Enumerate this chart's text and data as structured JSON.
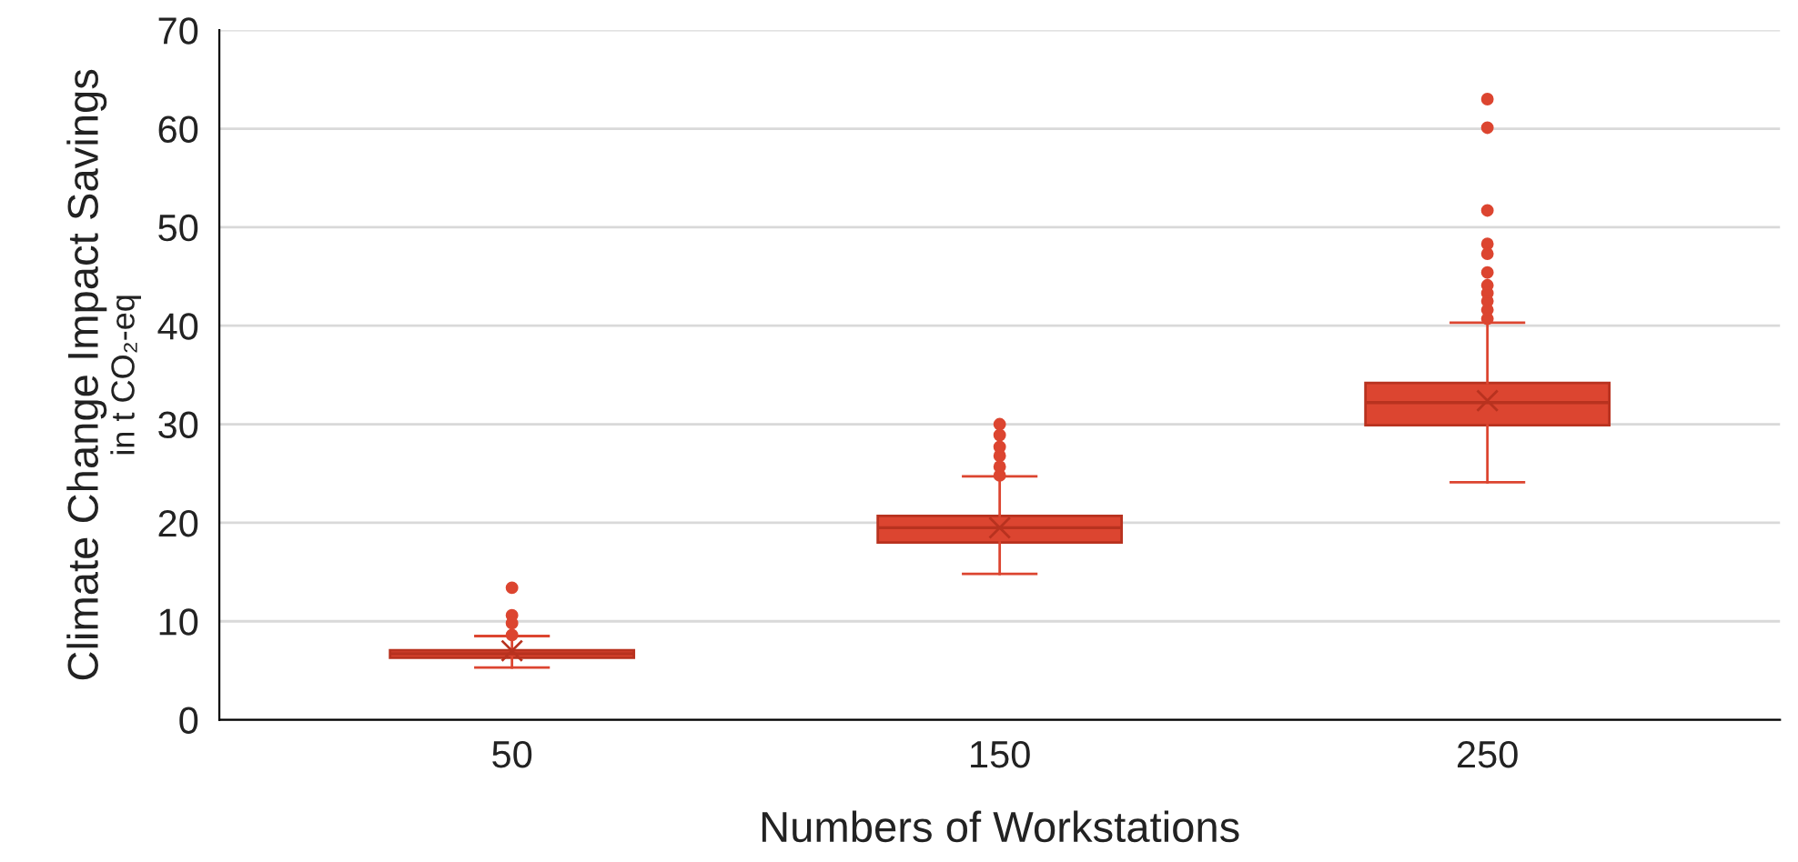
{
  "chart_data": {
    "type": "box",
    "xlabel": "Numbers of Workstations",
    "ylabel": "Climate Change Impact Savings\nin t CO₂-eq",
    "categories": [
      "50",
      "150",
      "250"
    ],
    "color": "#dc4530",
    "ylim": [
      0,
      70
    ],
    "yticks": [
      0,
      10,
      20,
      30,
      40,
      50,
      60,
      70
    ],
    "grid": "y",
    "boxes": [
      {
        "low": 5.3,
        "q1": 6.3,
        "median": 6.7,
        "q3": 7.05,
        "high": 8.5,
        "mean": 7.0,
        "outliers": [
          13.4,
          10.6,
          9.8,
          8.6
        ]
      },
      {
        "low": 14.8,
        "q1": 18.0,
        "median": 19.5,
        "q3": 20.7,
        "high": 24.7,
        "mean": 19.5,
        "outliers": [
          30.0,
          28.9,
          27.7,
          26.8,
          25.7,
          24.8
        ]
      },
      {
        "low": 24.1,
        "q1": 29.9,
        "median": 32.2,
        "q3": 34.2,
        "high": 40.3,
        "mean": 32.4,
        "outliers": [
          63.0,
          60.1,
          51.7,
          48.3,
          47.3,
          45.4,
          44.1,
          43.3,
          42.5,
          41.6,
          40.7
        ]
      }
    ]
  }
}
